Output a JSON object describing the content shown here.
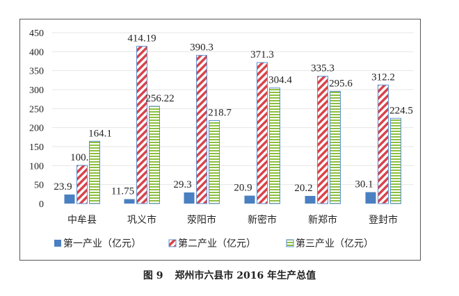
{
  "chart_data": {
    "type": "bar",
    "categories": [
      "中牟县",
      "巩义市",
      "荥阳市",
      "新密市",
      "新郑市",
      "登封市"
    ],
    "series": [
      {
        "name": "第一产业（亿元）",
        "values": [
          23.9,
          11.75,
          29.3,
          20.9,
          20.2,
          30.1
        ],
        "labels": [
          "23.9",
          "11.75",
          "29.3",
          "20.9",
          "20.2",
          "30.1"
        ],
        "color": "#4a7fc1",
        "pattern": "solid"
      },
      {
        "name": "第二产业（亿元）",
        "values": [
          100.7,
          414.19,
          390.3,
          371.3,
          335.3,
          312.2
        ],
        "labels": [
          "100.7",
          "414.19",
          "390.3",
          "371.3",
          "335.3",
          "312.2"
        ],
        "color": "#d9434a",
        "pattern": "diagonal"
      },
      {
        "name": "第三产业（亿元）",
        "values": [
          164.1,
          256.22,
          218.7,
          304.4,
          295.6,
          224.5
        ],
        "labels": [
          "164.1",
          "256.22",
          "218.7",
          "304.4",
          "295.6",
          "224.5"
        ],
        "color": "#8cbf3f",
        "pattern": "horizontal"
      }
    ],
    "yticks": [
      "0",
      "50",
      "100",
      "150",
      "200",
      "250",
      "300",
      "350",
      "400",
      "450"
    ],
    "ylim": [
      0,
      450
    ],
    "grid": true,
    "legend": "bottom"
  },
  "caption": {
    "figure": "图 9",
    "title": "郑州市六县市 2016 年生产总值"
  }
}
